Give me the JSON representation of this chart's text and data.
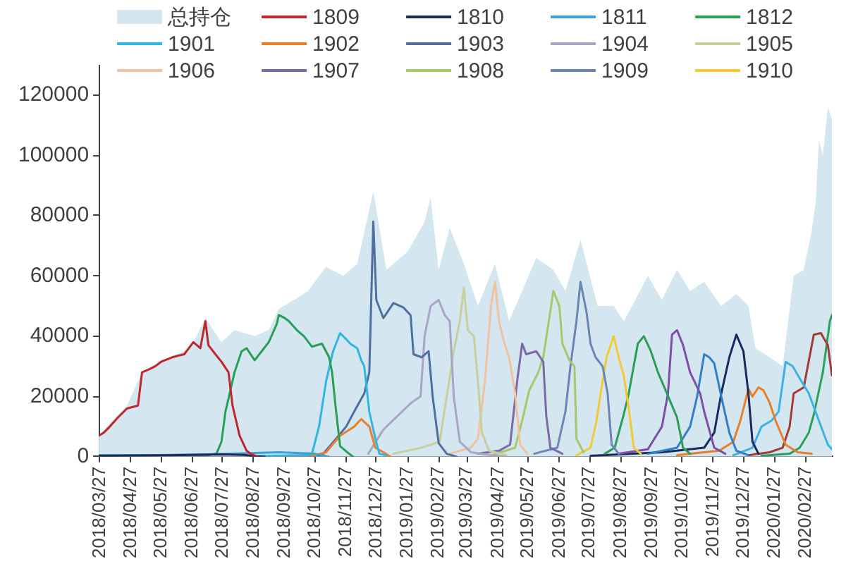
{
  "chart_data": {
    "type": "line",
    "legend": "top",
    "xlim": [
      "2018-03-26",
      "2020-03-24"
    ],
    "xticks": [
      {
        "value": "2018-03-27",
        "label": "2018/03/27"
      },
      {
        "value": "2018-04-27",
        "label": "2018/04/27"
      },
      {
        "value": "2018-05-27",
        "label": "2018/05/27"
      },
      {
        "value": "2018-06-27",
        "label": "2018/06/27"
      },
      {
        "value": "2018-07-27",
        "label": "2018/07/27"
      },
      {
        "value": "2018-08-27",
        "label": "2018/08/27"
      },
      {
        "value": "2018-09-27",
        "label": "2018/09/27"
      },
      {
        "value": "2018-10-27",
        "label": "2018/10/27"
      },
      {
        "value": "2018-11-27",
        "label": "2018/11/27"
      },
      {
        "value": "2018-12-27",
        "label": "2018/12/27"
      },
      {
        "value": "2019-01-27",
        "label": "2019/01/27"
      },
      {
        "value": "2019-02-27",
        "label": "2019/02/27"
      },
      {
        "value": "2019-03-27",
        "label": "2019/03/27"
      },
      {
        "value": "2019-04-27",
        "label": "2019/04/27"
      },
      {
        "value": "2019-05-27",
        "label": "2019/05/27"
      },
      {
        "value": "2019-06-27",
        "label": "2019/06/27"
      },
      {
        "value": "2019-07-27",
        "label": "2019/07/27"
      },
      {
        "value": "2019-08-27",
        "label": "2019/08/27"
      },
      {
        "value": "2019-09-27",
        "label": "2019/09/27"
      },
      {
        "value": "2019-10-27",
        "label": "2019/10/27"
      },
      {
        "value": "2019-11-27",
        "label": "2019/11/27"
      },
      {
        "value": "2019-12-27",
        "label": "2019/12/27"
      },
      {
        "value": "2020-01-27",
        "label": "2020/01/27"
      },
      {
        "value": "2020-02-27",
        "label": "2020/02/27"
      }
    ],
    "ylim": [
      0,
      130000
    ],
    "yticks": [
      0,
      20000,
      40000,
      60000,
      80000,
      100000,
      120000
    ],
    "series": [
      {
        "name": "总持仓",
        "type": "area",
        "color": "#d4e6ef",
        "x": [
          "2018-03-26",
          "2018-04-06",
          "2018-04-23",
          "2018-05-08",
          "2018-05-27",
          "2018-06-19",
          "2018-06-28",
          "2018-07-10",
          "2018-07-26",
          "2018-08-08",
          "2018-08-28",
          "2018-09-11",
          "2018-09-21",
          "2018-10-06",
          "2018-10-20",
          "2018-11-07",
          "2018-11-24",
          "2018-12-08",
          "2018-12-24",
          "2019-01-06",
          "2019-01-27",
          "2019-02-13",
          "2019-02-19",
          "2019-02-27",
          "2019-03-10",
          "2019-03-24",
          "2019-04-07",
          "2019-04-24",
          "2019-05-08",
          "2019-05-21",
          "2019-06-04",
          "2019-06-21",
          "2019-07-03",
          "2019-07-18",
          "2019-08-04",
          "2019-08-20",
          "2019-08-30",
          "2019-09-04",
          "2019-09-23",
          "2019-10-07",
          "2019-10-22",
          "2019-11-04",
          "2019-11-18",
          "2019-12-05",
          "2019-12-20",
          "2020-01-01",
          "2020-01-08",
          "2020-01-22",
          "2020-02-04",
          "2020-02-15",
          "2020-02-25",
          "2020-03-04",
          "2020-03-08",
          "2020-03-11",
          "2020-03-15",
          "2020-03-20",
          "2020-03-24"
        ],
        "values": [
          7000,
          11000,
          17000,
          28000,
          32000,
          35000,
          38000,
          46000,
          38000,
          42000,
          40000,
          42000,
          49000,
          52000,
          55000,
          63000,
          60000,
          64000,
          88000,
          62000,
          68000,
          78000,
          86000,
          62000,
          76000,
          64000,
          50000,
          64000,
          45000,
          55000,
          66000,
          62000,
          55000,
          72000,
          50000,
          50000,
          45000,
          48000,
          60000,
          52000,
          62000,
          55000,
          58000,
          50000,
          54000,
          50000,
          36000,
          33000,
          30000,
          60000,
          62000,
          75000,
          85000,
          105000,
          100000,
          116000,
          112000
        ]
      },
      {
        "name": "1809",
        "type": "line",
        "color": "#c0272d",
        "x": [
          "2018-03-26",
          "2018-03-31",
          "2018-04-06",
          "2018-04-14",
          "2018-04-23",
          "2018-05-04",
          "2018-05-08",
          "2018-05-15",
          "2018-05-21",
          "2018-05-27",
          "2018-06-07",
          "2018-06-19",
          "2018-06-28",
          "2018-07-05",
          "2018-07-10",
          "2018-07-13",
          "2018-07-20",
          "2018-07-26",
          "2018-08-02",
          "2018-08-06",
          "2018-08-13",
          "2018-08-20",
          "2018-08-24",
          "2018-08-31"
        ],
        "values": [
          7000,
          8000,
          10000,
          13000,
          16000,
          17000,
          28000,
          29000,
          30000,
          31500,
          33000,
          34000,
          38000,
          36000,
          45000,
          37000,
          34000,
          31500,
          28000,
          17000,
          7000,
          2000,
          1000,
          0
        ]
      },
      {
        "name": "1810",
        "type": "line",
        "color": "#1f2a5a",
        "x": [
          "2018-03-26",
          "2018-05-31",
          "2018-07-26",
          "2018-08-17",
          "2018-08-28",
          "2018-09-07"
        ],
        "values": [
          300,
          500,
          800,
          600,
          200,
          0
        ]
      },
      {
        "name": "1811",
        "type": "line",
        "color": "#3b9fd9",
        "x": [
          "2018-03-26",
          "2018-07-12",
          "2018-09-21",
          "2018-10-27",
          "2018-11-10"
        ],
        "values": [
          200,
          800,
          1500,
          1000,
          0
        ]
      },
      {
        "name": "1812",
        "type": "line",
        "color": "#2a9d56",
        "x": [
          "2018-03-26",
          "2018-07-12",
          "2018-07-21",
          "2018-07-26",
          "2018-07-30",
          "2018-08-08",
          "2018-08-15",
          "2018-08-20",
          "2018-08-28",
          "2018-09-04",
          "2018-09-11",
          "2018-09-19",
          "2018-09-21",
          "2018-09-27",
          "2018-10-01",
          "2018-10-09",
          "2018-10-16",
          "2018-10-24",
          "2018-11-03",
          "2018-11-10",
          "2018-11-13",
          "2018-11-17",
          "2018-11-21",
          "2018-11-28",
          "2018-12-04"
        ],
        "values": [
          500,
          500,
          1000,
          5000,
          15000,
          28000,
          35000,
          36000,
          32000,
          35000,
          38000,
          44000,
          47000,
          46000,
          45000,
          42000,
          40000,
          36500,
          37500,
          33000,
          28000,
          15000,
          3500,
          1500,
          0
        ]
      },
      {
        "name": "1901",
        "type": "line",
        "color": "#2fb5e3",
        "x": [
          "2018-08-24",
          "2018-10-20",
          "2018-10-24",
          "2018-10-31",
          "2018-11-07",
          "2018-11-14",
          "2018-11-21",
          "2018-11-27",
          "2018-12-01",
          "2018-12-08",
          "2018-12-12",
          "2018-12-15",
          "2018-12-20",
          "2018-12-26",
          "2018-12-30",
          "2019-01-06"
        ],
        "values": [
          200,
          500,
          1000,
          10000,
          25000,
          35000,
          41000,
          39000,
          37500,
          36000,
          32000,
          30000,
          15000,
          6000,
          1000,
          500
        ]
      },
      {
        "name": "1902",
        "type": "line",
        "color": "#e8812a",
        "x": [
          "2018-09-21",
          "2018-10-27",
          "2018-11-07",
          "2018-11-21",
          "2018-12-05",
          "2018-12-12",
          "2018-12-20",
          "2018-12-26",
          "2019-01-03",
          "2019-01-10"
        ],
        "values": [
          200,
          500,
          1500,
          7000,
          10000,
          12500,
          10000,
          3000,
          1500,
          0
        ]
      },
      {
        "name": "1903",
        "type": "line",
        "color": "#4f6f9f",
        "x": [
          "2018-09-21",
          "2018-11-03",
          "2018-11-17",
          "2018-11-27",
          "2018-12-05",
          "2018-12-15",
          "2018-12-20",
          "2018-12-24",
          "2018-12-27",
          "2019-01-03",
          "2019-01-13",
          "2019-01-23",
          "2019-01-30",
          "2019-02-02",
          "2019-02-10",
          "2019-02-17",
          "2019-02-21",
          "2019-02-27",
          "2019-03-07",
          "2019-03-17"
        ],
        "values": [
          300,
          500,
          6000,
          10000,
          15000,
          21000,
          28000,
          78000,
          52000,
          46000,
          51000,
          49500,
          47000,
          34000,
          33000,
          35000,
          20000,
          4500,
          1000,
          0
        ]
      },
      {
        "name": "1904",
        "type": "line",
        "color": "#a8a6c4",
        "x": [
          "2018-12-19",
          "2019-01-03",
          "2019-01-17",
          "2019-01-31",
          "2019-02-09",
          "2019-02-13",
          "2019-02-19",
          "2019-02-27",
          "2019-03-05",
          "2019-03-10",
          "2019-03-14",
          "2019-03-20",
          "2019-03-31",
          "2019-04-14",
          "2019-05-05"
        ],
        "values": [
          1000,
          9000,
          13500,
          18000,
          20000,
          40000,
          50000,
          52000,
          47000,
          45000,
          20000,
          5000,
          1500,
          800,
          0
        ]
      },
      {
        "name": "1905",
        "type": "line",
        "color": "#c8cf9c",
        "x": [
          "2019-01-13",
          "2019-02-10",
          "2019-02-28",
          "2019-03-07",
          "2019-03-14",
          "2019-03-20",
          "2019-03-24",
          "2019-03-28",
          "2019-04-03",
          "2019-04-07",
          "2019-04-11",
          "2019-04-18",
          "2019-05-05"
        ],
        "values": [
          1000,
          3000,
          5000,
          20000,
          35000,
          45000,
          56000,
          42000,
          40000,
          25000,
          8000,
          2000,
          500
        ]
      },
      {
        "name": "1906",
        "type": "line",
        "color": "#f2c1a1",
        "x": [
          "2019-03-10",
          "2019-03-31",
          "2019-04-07",
          "2019-04-14",
          "2019-04-20",
          "2019-04-24",
          "2019-04-28",
          "2019-05-03",
          "2019-05-08",
          "2019-05-14",
          "2019-05-19",
          "2019-05-26"
        ],
        "values": [
          1000,
          3000,
          6000,
          25000,
          50000,
          58000,
          45000,
          38000,
          33000,
          21000,
          4000,
          1000
        ]
      },
      {
        "name": "1907",
        "type": "line",
        "color": "#7d68a8",
        "x": [
          "2019-04-07",
          "2019-04-28",
          "2019-05-09",
          "2019-05-16",
          "2019-05-21",
          "2019-05-25",
          "2019-06-04",
          "2019-06-11",
          "2019-06-14",
          "2019-06-18",
          "2019-06-30"
        ],
        "values": [
          1000,
          2000,
          4000,
          25000,
          37500,
          34000,
          35000,
          31500,
          13500,
          3000,
          1000
        ]
      },
      {
        "name": "1908",
        "type": "line",
        "color": "#a6c86a",
        "x": [
          "2019-04-21",
          "2019-05-14",
          "2019-05-21",
          "2019-05-28",
          "2019-06-06",
          "2019-06-11",
          "2019-06-17",
          "2019-06-21",
          "2019-06-27",
          "2019-06-30",
          "2019-07-07",
          "2019-07-12",
          "2019-07-14",
          "2019-07-21"
        ],
        "values": [
          500,
          3000,
          12000,
          22000,
          28000,
          33000,
          46000,
          55000,
          50000,
          37500,
          32000,
          30000,
          6000,
          1500
        ]
      },
      {
        "name": "1909",
        "type": "line",
        "color": "#6b85b5",
        "x": [
          "2019-06-02",
          "2019-06-25",
          "2019-07-03",
          "2019-07-08",
          "2019-07-14",
          "2019-07-18",
          "2019-07-24",
          "2019-07-28",
          "2019-08-02",
          "2019-08-09",
          "2019-08-14",
          "2019-08-18",
          "2019-08-25"
        ],
        "values": [
          1000,
          3000,
          15000,
          30000,
          45000,
          58000,
          48000,
          37500,
          33000,
          30000,
          21000,
          4000,
          1000
        ]
      },
      {
        "name": "1910",
        "type": "line",
        "color": "#f2c936",
        "x": [
          "2019-07-14",
          "2019-07-28",
          "2019-08-03",
          "2019-08-07",
          "2019-08-13",
          "2019-08-20",
          "2019-08-25",
          "2019-08-30",
          "2019-09-04",
          "2019-09-09",
          "2019-09-16"
        ],
        "values": [
          500,
          3000,
          12000,
          21000,
          33000,
          40000,
          33000,
          27000,
          16000,
          3000,
          1000
        ]
      },
      {
        "type": "line",
        "color": "#2a9d56",
        "x": [
          "2019-08-11",
          "2019-08-21",
          "2019-08-30",
          "2019-09-04",
          "2019-09-13",
          "2019-09-19",
          "2019-09-26",
          "2019-10-03",
          "2019-10-12",
          "2019-10-22",
          "2019-10-28",
          "2019-11-04"
        ],
        "values": [
          1000,
          3000,
          14000,
          21000,
          37500,
          40000,
          35000,
          28000,
          21000,
          13000,
          3000,
          1000
        ]
      },
      {
        "type": "line",
        "color": "#7f4fa8",
        "x": [
          "2019-08-25",
          "2019-09-23",
          "2019-10-07",
          "2019-10-13",
          "2019-10-17",
          "2019-10-22",
          "2019-10-28",
          "2019-11-04",
          "2019-11-14",
          "2019-11-18",
          "2019-11-28",
          "2019-12-09"
        ],
        "values": [
          1000,
          2500,
          10000,
          21000,
          40500,
          42000,
          37000,
          28000,
          21000,
          15000,
          3000,
          1000
        ]
      },
      {
        "type": "line",
        "color": "#2f80c7",
        "x": [
          "2019-09-23",
          "2019-10-22",
          "2019-11-04",
          "2019-11-11",
          "2019-11-18",
          "2019-11-23",
          "2019-11-28",
          "2019-12-05",
          "2019-12-13",
          "2019-12-20",
          "2020-01-01"
        ],
        "values": [
          1000,
          3000,
          10000,
          20000,
          34000,
          33000,
          31000,
          20000,
          8000,
          2000,
          500
        ]
      },
      {
        "type": "line",
        "color": "#1b2a5e",
        "x": [
          "2019-07-28",
          "2019-10-07",
          "2019-11-18",
          "2019-11-28",
          "2019-12-05",
          "2019-12-13",
          "2019-12-20",
          "2019-12-27",
          "2020-01-01",
          "2020-01-05",
          "2020-01-11"
        ],
        "values": [
          300,
          1500,
          3000,
          8000,
          21000,
          33000,
          40500,
          35000,
          21000,
          5000,
          1000
        ]
      },
      {
        "type": "line",
        "color": "#e5802a",
        "x": [
          "2019-10-22",
          "2019-11-18",
          "2019-12-03",
          "2019-12-17",
          "2019-12-24",
          "2020-01-01",
          "2020-01-05",
          "2020-01-11",
          "2020-01-16",
          "2020-01-22",
          "2020-01-28",
          "2020-02-07",
          "2020-02-19",
          "2020-03-04"
        ],
        "values": [
          500,
          1500,
          2000,
          5000,
          12000,
          22500,
          20000,
          23000,
          22000,
          18000,
          12000,
          4000,
          1500,
          1000
        ]
      },
      {
        "type": "line",
        "color": "#3cb2e4",
        "x": [
          "2019-12-17",
          "2020-01-05",
          "2020-01-14",
          "2020-01-24",
          "2020-01-31",
          "2020-02-07",
          "2020-02-14",
          "2020-02-21",
          "2020-03-01",
          "2020-03-11",
          "2020-03-20",
          "2020-03-24"
        ],
        "values": [
          500,
          3000,
          10000,
          12000,
          15000,
          31500,
          30000,
          26000,
          21000,
          12000,
          4000,
          2500
        ]
      },
      {
        "type": "line",
        "color": "#a33a3a",
        "x": [
          "2020-01-01",
          "2020-01-22",
          "2020-02-04",
          "2020-02-11",
          "2020-02-15",
          "2020-02-25",
          "2020-03-06",
          "2020-03-13",
          "2020-03-20",
          "2020-03-24"
        ],
        "values": [
          500,
          1500,
          3000,
          10000,
          21000,
          23000,
          40500,
          41000,
          37000,
          27000
        ]
      },
      {
        "type": "line",
        "color": "#2aa05a",
        "x": [
          "2020-01-14",
          "2020-02-11",
          "2020-02-21",
          "2020-03-01",
          "2020-03-06",
          "2020-03-15",
          "2020-03-22",
          "2020-03-24"
        ],
        "values": [
          300,
          1000,
          3000,
          8000,
          14000,
          28000,
          45000,
          47000
        ]
      }
    ]
  }
}
